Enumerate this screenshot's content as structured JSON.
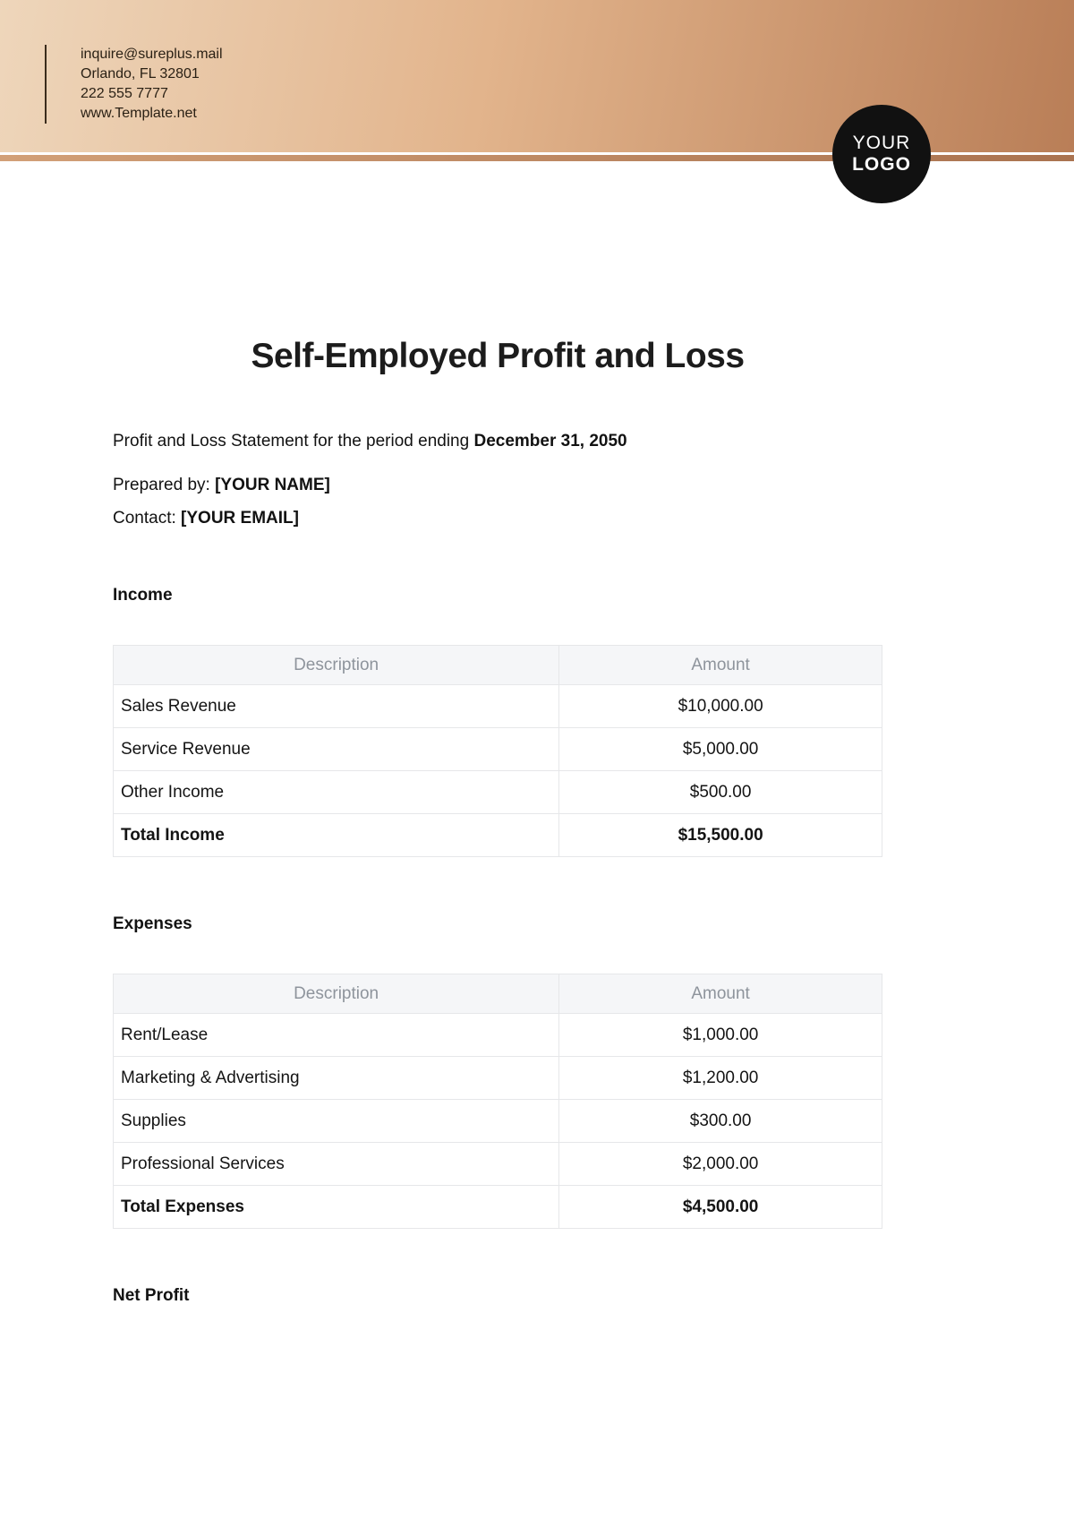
{
  "theme": {
    "header_gradient_start": "#eed6bb",
    "header_gradient_end": "#b97e57",
    "stripe_color": "#aa7350",
    "logo_bg": "#111111",
    "table_header_bg": "#f5f6f8",
    "table_border": "#e6e7e9"
  },
  "header": {
    "email": "inquire@sureplus.mail",
    "address": "Orlando, FL 32801",
    "phone": "222 555 7777",
    "website": "www.Template.net",
    "logo_line1": "YOUR",
    "logo_line2": "LOGO"
  },
  "document": {
    "title": "Self-Employed Profit and Loss",
    "period_prefix": "Profit and Loss Statement for the period ending ",
    "period_date": "December 31, 2050",
    "prepared_by_label": "Prepared by: ",
    "prepared_by_value": "[YOUR NAME]",
    "contact_label": "Contact: ",
    "contact_value": "[YOUR EMAIL]"
  },
  "income": {
    "heading": "Income",
    "columns": {
      "description": "Description",
      "amount": "Amount"
    },
    "rows": [
      {
        "description": "Sales Revenue",
        "amount": "$10,000.00"
      },
      {
        "description": "Service Revenue",
        "amount": "$5,000.00"
      },
      {
        "description": "Other Income",
        "amount": "$500.00"
      }
    ],
    "total": {
      "description": "Total Income",
      "amount": "$15,500.00"
    }
  },
  "expenses": {
    "heading": "Expenses",
    "columns": {
      "description": "Description",
      "amount": "Amount"
    },
    "rows": [
      {
        "description": "Rent/Lease",
        "amount": "$1,000.00"
      },
      {
        "description": "Marketing & Advertising",
        "amount": "$1,200.00"
      },
      {
        "description": "Supplies",
        "amount": "$300.00"
      },
      {
        "description": "Professional Services",
        "amount": "$2,000.00"
      }
    ],
    "total": {
      "description": "Total Expenses",
      "amount": "$4,500.00"
    }
  },
  "net_profit": {
    "heading": "Net Profit"
  }
}
